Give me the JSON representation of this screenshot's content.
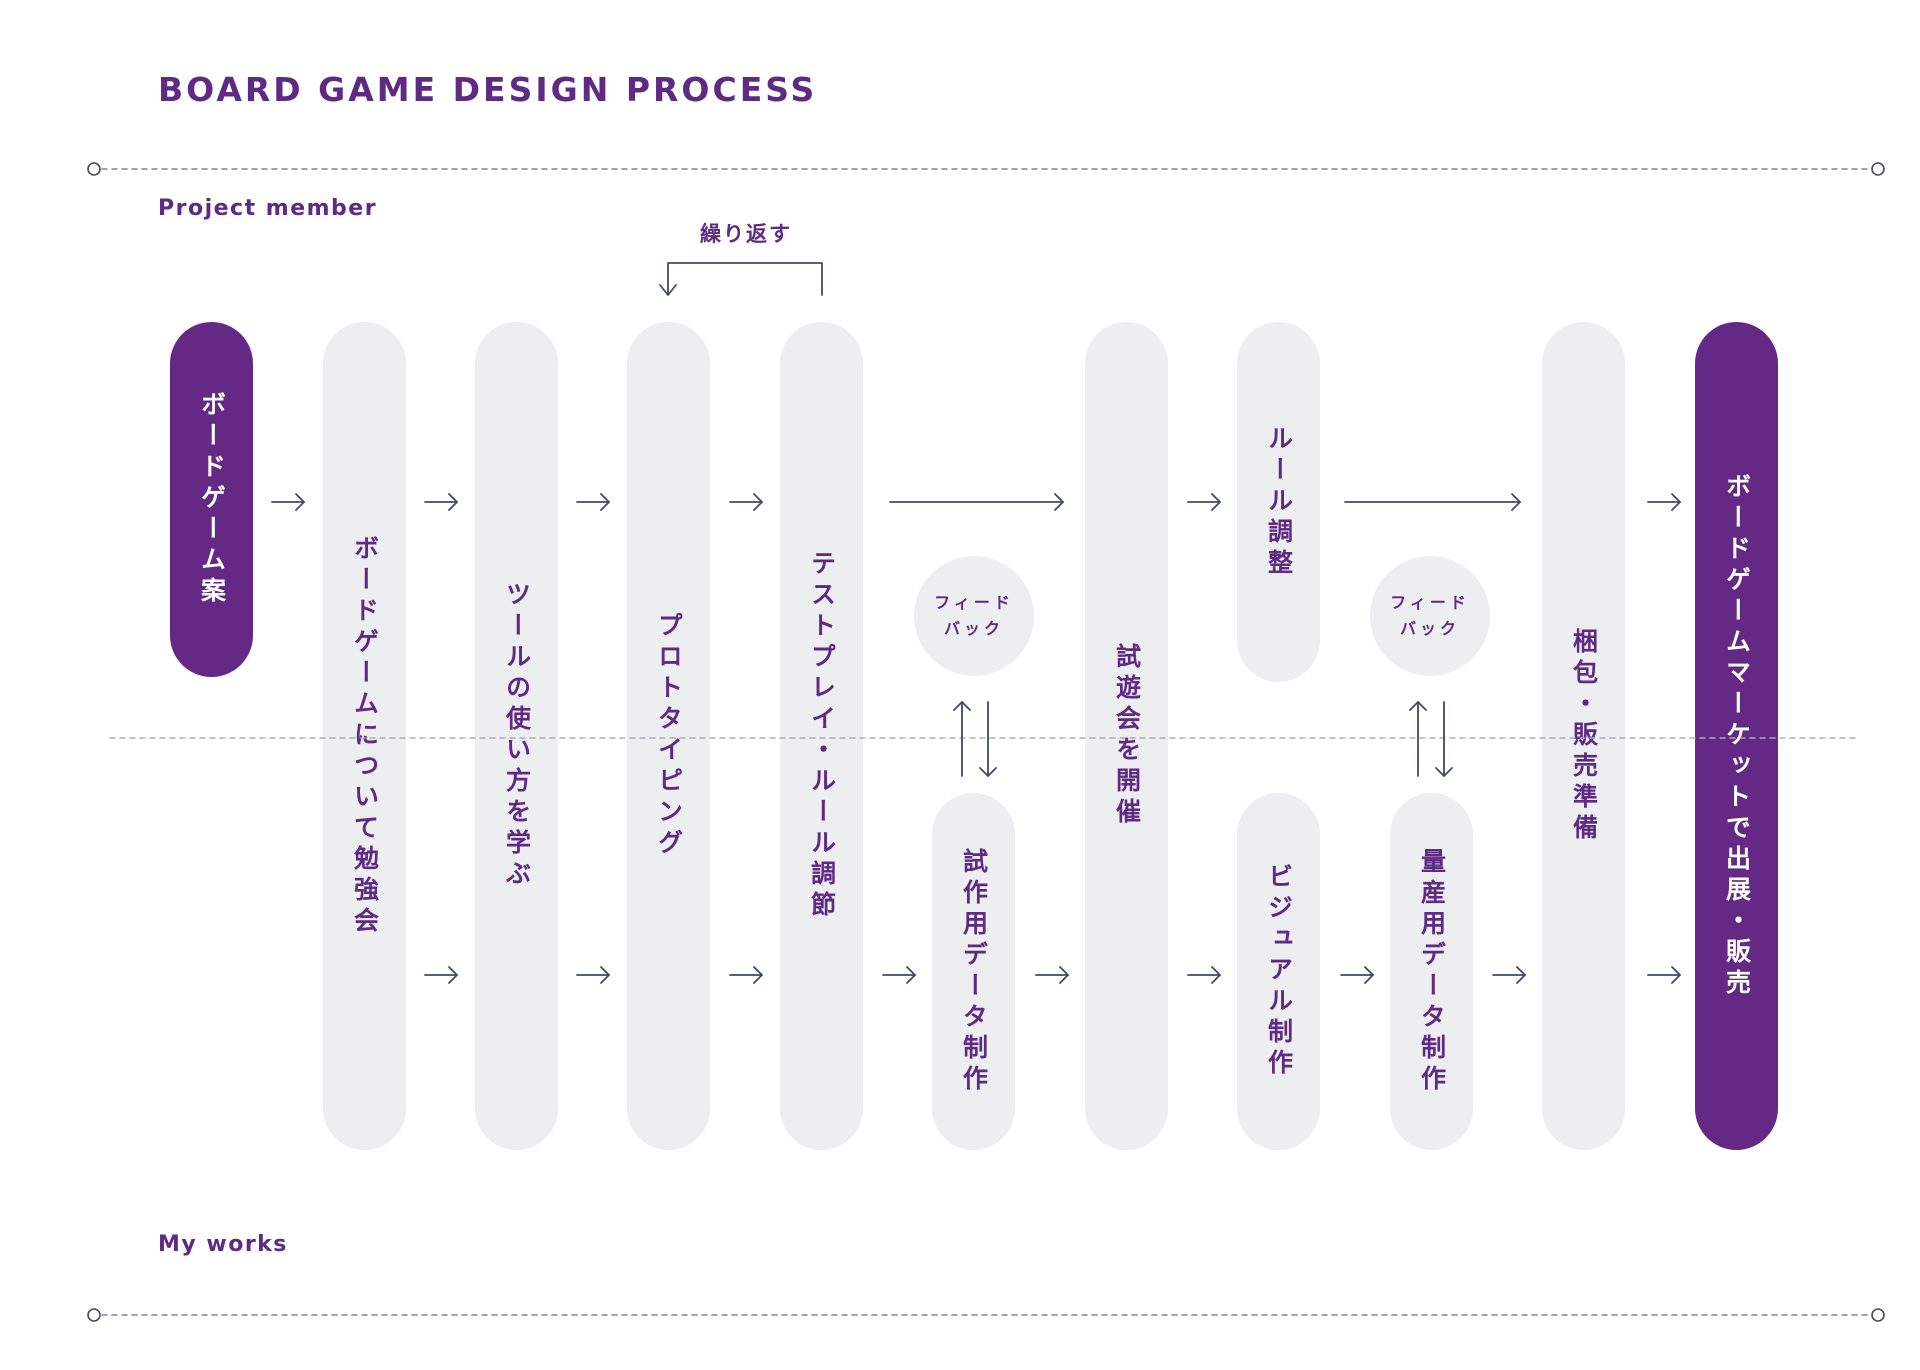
{
  "header": {
    "title": "BOARD GAME DESIGN PROCESS"
  },
  "lanes": {
    "top_label": "Project member",
    "bottom_label": "My works"
  },
  "loop_label": "繰り返す",
  "steps": {
    "idea": "ボードゲーム案",
    "study": "ボードゲームについて勉強会",
    "tools": "ツールの使い方を学ぶ",
    "prototyping": "プロトタイピング",
    "testplay": "テストプレイ・ルール調節",
    "trial_data": "試作用データ制作",
    "playtest_event": "試遊会を開催",
    "rule_adjust": "ルール調整",
    "visual": "ビジュアル制作",
    "mass_data": "量産用データ制作",
    "packing": "梱包・販売準備",
    "market": "ボードゲームマーケットで出展・販売"
  },
  "feedback_bubbles": [
    {
      "line1": "フィード",
      "line2": "バック"
    },
    {
      "line1": "フィード",
      "line2": "バック"
    }
  ],
  "colors": {
    "accent": "#642985",
    "text": "#5e2a84",
    "pill_bg": "#eceeef",
    "arrow": "#3d4a6a",
    "dash": "#9aa0ab"
  }
}
